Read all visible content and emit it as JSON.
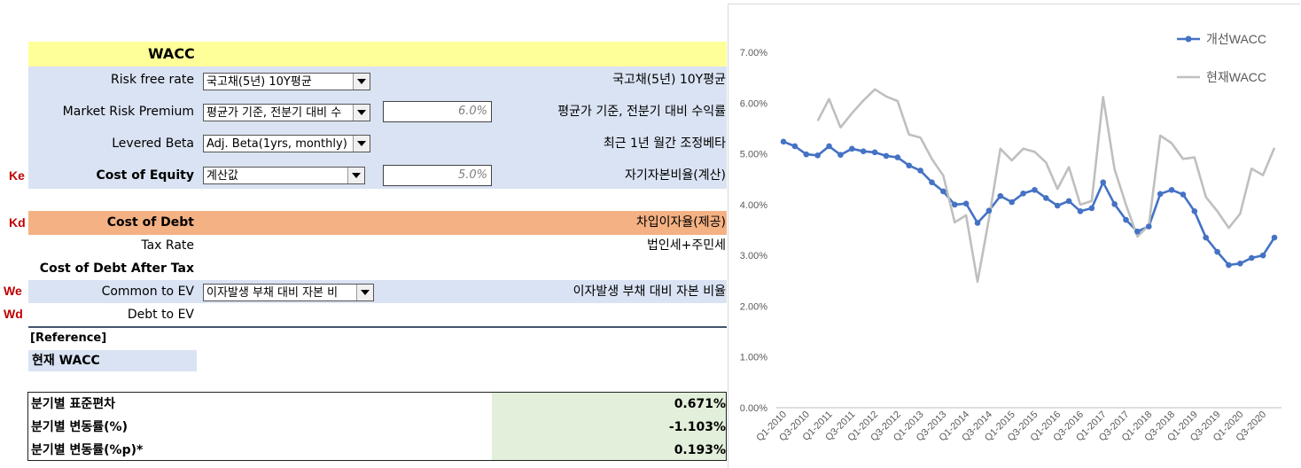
{
  "wacc": {
    "title": "WACC",
    "rows": {
      "risk_free": {
        "label": "Risk free rate",
        "select": "국고채(5년) 10Y평균",
        "note": "국고채(5년) 10Y평균"
      },
      "mrp": {
        "label": "Market Risk Premium",
        "select": "평균가 기준, 전분기 대비 수",
        "value": "6.0%",
        "note": "평균가 기준, 전분기 대비 수익률"
      },
      "beta": {
        "label": "Levered Beta",
        "select": "Adj. Beta(1yrs, monthly)",
        "note": "최근 1년 월간 조정베타"
      },
      "coe": {
        "side": "Ke",
        "label": "Cost of Equity",
        "select": "계산값",
        "value": "5.0%",
        "note": "자기자본비율(계산)"
      },
      "cod": {
        "side": "Kd",
        "label": "Cost of Debt",
        "note": "차입이자율(제공)"
      },
      "tax": {
        "label": "Tax Rate",
        "note": "법인세+주민세"
      },
      "cod_after": {
        "label": "Cost of Debt After Tax"
      },
      "common_ev": {
        "side": "We",
        "label": "Common to EV",
        "select": "이자발생 부채 대비 자본 비",
        "note": "이자발생 부채 대비 자본 비율"
      },
      "debt_ev": {
        "side": "Wd",
        "label": "Debt to EV"
      }
    },
    "reference": "[Reference]",
    "current_wacc": "현재 WACC"
  },
  "stats": [
    {
      "label": "분기별 표준편차",
      "value": "0.671%"
    },
    {
      "label": "분기별 변동률(%)",
      "value": "-1.103%"
    },
    {
      "label": "분기별 변동률(%p)*",
      "value": "0.193%"
    }
  ],
  "colors": {
    "yellow": "#ffff99",
    "blue_band": "#dae3f3",
    "orange_band": "#f4b183",
    "green": "#e2efda",
    "side_label": "#c00000",
    "series_blue": "#4472c4",
    "series_gray": "#bfbfbf"
  },
  "chart_data": {
    "type": "line",
    "ylim": [
      0,
      7
    ],
    "yticks": [
      "0.00%",
      "1.00%",
      "2.00%",
      "3.00%",
      "4.00%",
      "5.00%",
      "6.00%",
      "7.00%"
    ],
    "xticks": [
      "Q1-2010",
      "Q3-2010",
      "Q1-2011",
      "Q3-2011",
      "Q1-2012",
      "Q3-2012",
      "Q1-2013",
      "Q3-2013",
      "Q1-2014",
      "Q3-2014",
      "Q1-2015",
      "Q3-2015",
      "Q1-2016",
      "Q3-2016",
      "Q1-2017",
      "Q3-2017",
      "Q1-2018",
      "Q3-2018",
      "Q1-2019",
      "Q3-2019",
      "Q1-2020",
      "Q3-2020"
    ],
    "legend_position": "top-right",
    "series": [
      {
        "name": "개선WACC",
        "color": "#4472c4",
        "marker": true,
        "values": [
          5.24,
          5.15,
          4.99,
          4.97,
          5.15,
          4.98,
          5.1,
          5.05,
          5.03,
          4.96,
          4.93,
          4.77,
          4.67,
          4.44,
          4.26,
          4.0,
          4.02,
          3.64,
          3.88,
          4.17,
          4.05,
          4.22,
          4.29,
          4.13,
          3.98,
          4.07,
          3.87,
          3.93,
          4.44,
          4.01,
          3.7,
          3.47,
          3.57,
          4.21,
          4.29,
          4.2,
          3.87,
          3.35,
          3.07,
          2.81,
          2.84,
          2.95,
          3.0,
          3.35
        ]
      },
      {
        "name": "현재WACC",
        "color": "#bfbfbf",
        "marker": false,
        "values": [
          null,
          null,
          null,
          5.65,
          6.08,
          5.52,
          5.8,
          6.05,
          6.27,
          6.13,
          6.04,
          5.38,
          5.32,
          4.9,
          4.57,
          3.65,
          3.79,
          2.48,
          3.72,
          5.1,
          4.87,
          5.1,
          5.04,
          4.83,
          4.31,
          4.74,
          4.0,
          4.07,
          6.12,
          4.7,
          4.0,
          3.37,
          3.59,
          5.36,
          5.21,
          4.9,
          4.93,
          4.15,
          3.87,
          3.54,
          3.82,
          4.71,
          4.58,
          5.12
        ]
      }
    ]
  }
}
